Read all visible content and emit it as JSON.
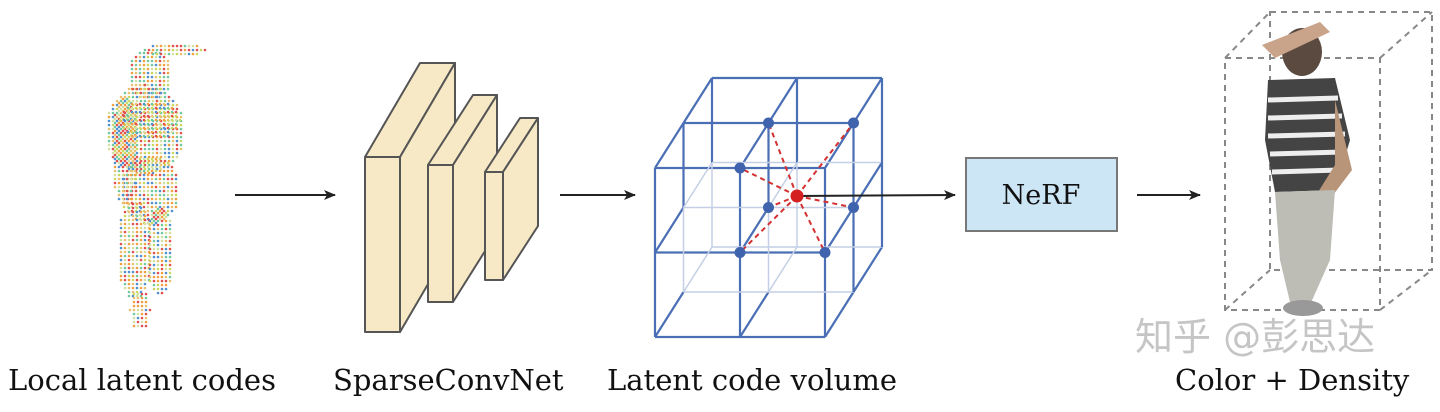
{
  "labels": {
    "local_latent_codes": "Local latent codes",
    "sparseconvnet": "SparseConvNet",
    "latent_code_volume": "Latent code volume",
    "color_density": "Color + Density"
  },
  "nerf_box": {
    "label": "NeRF"
  },
  "watermark": "知乎 @彭思达",
  "colors": {
    "block_fill": "#f8e9c6",
    "block_stroke": "#555555",
    "grid_blue": "#4a6fb5",
    "grid_light": "#c4cfe6",
    "vertex_dot": "#3f63ad",
    "sample_point": "#d42020",
    "interp_line": "#d43030",
    "nerf_fill": "#cce6f6",
    "arrow": "#222222"
  }
}
